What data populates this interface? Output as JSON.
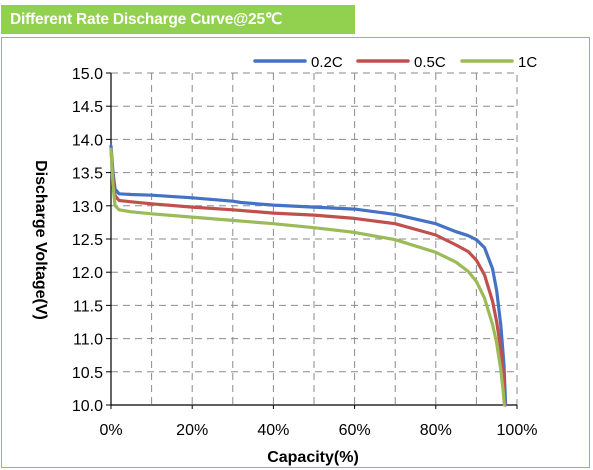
{
  "banner": {
    "title": "Different Rate Discharge Curve@25℃"
  },
  "colors": {
    "banner": "#92d050",
    "panel_border": "#9bbb59",
    "grid": "#8a8a8a",
    "series_0_2C": "#4472c4",
    "series_0_5C": "#c0504d",
    "series_1C": "#9bbb59"
  },
  "chart_data": {
    "type": "line",
    "title": "Different Rate Discharge Curve@25℃",
    "xlabel": "Capacity(%)",
    "ylabel": "Discharge Voltage(V)",
    "xlim": [
      0,
      100
    ],
    "ylim": [
      10.0,
      15.0
    ],
    "x_ticks": [
      "0%",
      "20%",
      "40%",
      "60%",
      "80%",
      "100%"
    ],
    "y_ticks": [
      "10.0",
      "10.5",
      "11.0",
      "11.5",
      "12.0",
      "12.5",
      "13.0",
      "13.5",
      "14.0",
      "14.5",
      "15.0"
    ],
    "grid": "dashed",
    "legend_position": "top-right",
    "series": [
      {
        "name": "0.2C",
        "color": "#4472c4",
        "points": [
          [
            0,
            13.9
          ],
          [
            0.5,
            13.5
          ],
          [
            1,
            13.25
          ],
          [
            2,
            13.18
          ],
          [
            5,
            13.17
          ],
          [
            10,
            13.16
          ],
          [
            20,
            13.12
          ],
          [
            30,
            13.07
          ],
          [
            32,
            13.05
          ],
          [
            40,
            13.01
          ],
          [
            50,
            12.98
          ],
          [
            60,
            12.95
          ],
          [
            70,
            12.87
          ],
          [
            80,
            12.73
          ],
          [
            85,
            12.61
          ],
          [
            88,
            12.55
          ],
          [
            90,
            12.49
          ],
          [
            92,
            12.37
          ],
          [
            94,
            12.05
          ],
          [
            95,
            11.72
          ],
          [
            96,
            11.2
          ],
          [
            96.8,
            10.6
          ],
          [
            97.2,
            10.0
          ]
        ]
      },
      {
        "name": "0.5C",
        "color": "#c0504d",
        "points": [
          [
            0,
            13.85
          ],
          [
            0.5,
            13.4
          ],
          [
            1,
            13.15
          ],
          [
            2,
            13.08
          ],
          [
            5,
            13.06
          ],
          [
            10,
            13.03
          ],
          [
            20,
            12.98
          ],
          [
            30,
            12.94
          ],
          [
            40,
            12.89
          ],
          [
            50,
            12.86
          ],
          [
            60,
            12.81
          ],
          [
            70,
            12.73
          ],
          [
            80,
            12.56
          ],
          [
            85,
            12.41
          ],
          [
            88,
            12.31
          ],
          [
            90,
            12.18
          ],
          [
            92,
            11.96
          ],
          [
            94,
            11.56
          ],
          [
            95,
            11.25
          ],
          [
            96,
            10.84
          ],
          [
            96.6,
            10.5
          ],
          [
            97,
            10.0
          ]
        ]
      },
      {
        "name": "1C",
        "color": "#9bbb59",
        "points": [
          [
            0,
            13.85
          ],
          [
            0.5,
            13.3
          ],
          [
            1,
            13.0
          ],
          [
            2,
            12.94
          ],
          [
            5,
            12.91
          ],
          [
            10,
            12.88
          ],
          [
            20,
            12.83
          ],
          [
            30,
            12.78
          ],
          [
            40,
            12.73
          ],
          [
            50,
            12.67
          ],
          [
            60,
            12.6
          ],
          [
            70,
            12.49
          ],
          [
            80,
            12.3
          ],
          [
            85,
            12.15
          ],
          [
            88,
            12.01
          ],
          [
            90,
            11.86
          ],
          [
            92,
            11.61
          ],
          [
            94,
            11.21
          ],
          [
            95,
            10.93
          ],
          [
            96,
            10.53
          ],
          [
            96.6,
            10.2
          ],
          [
            96.9,
            10.0
          ]
        ]
      }
    ]
  }
}
